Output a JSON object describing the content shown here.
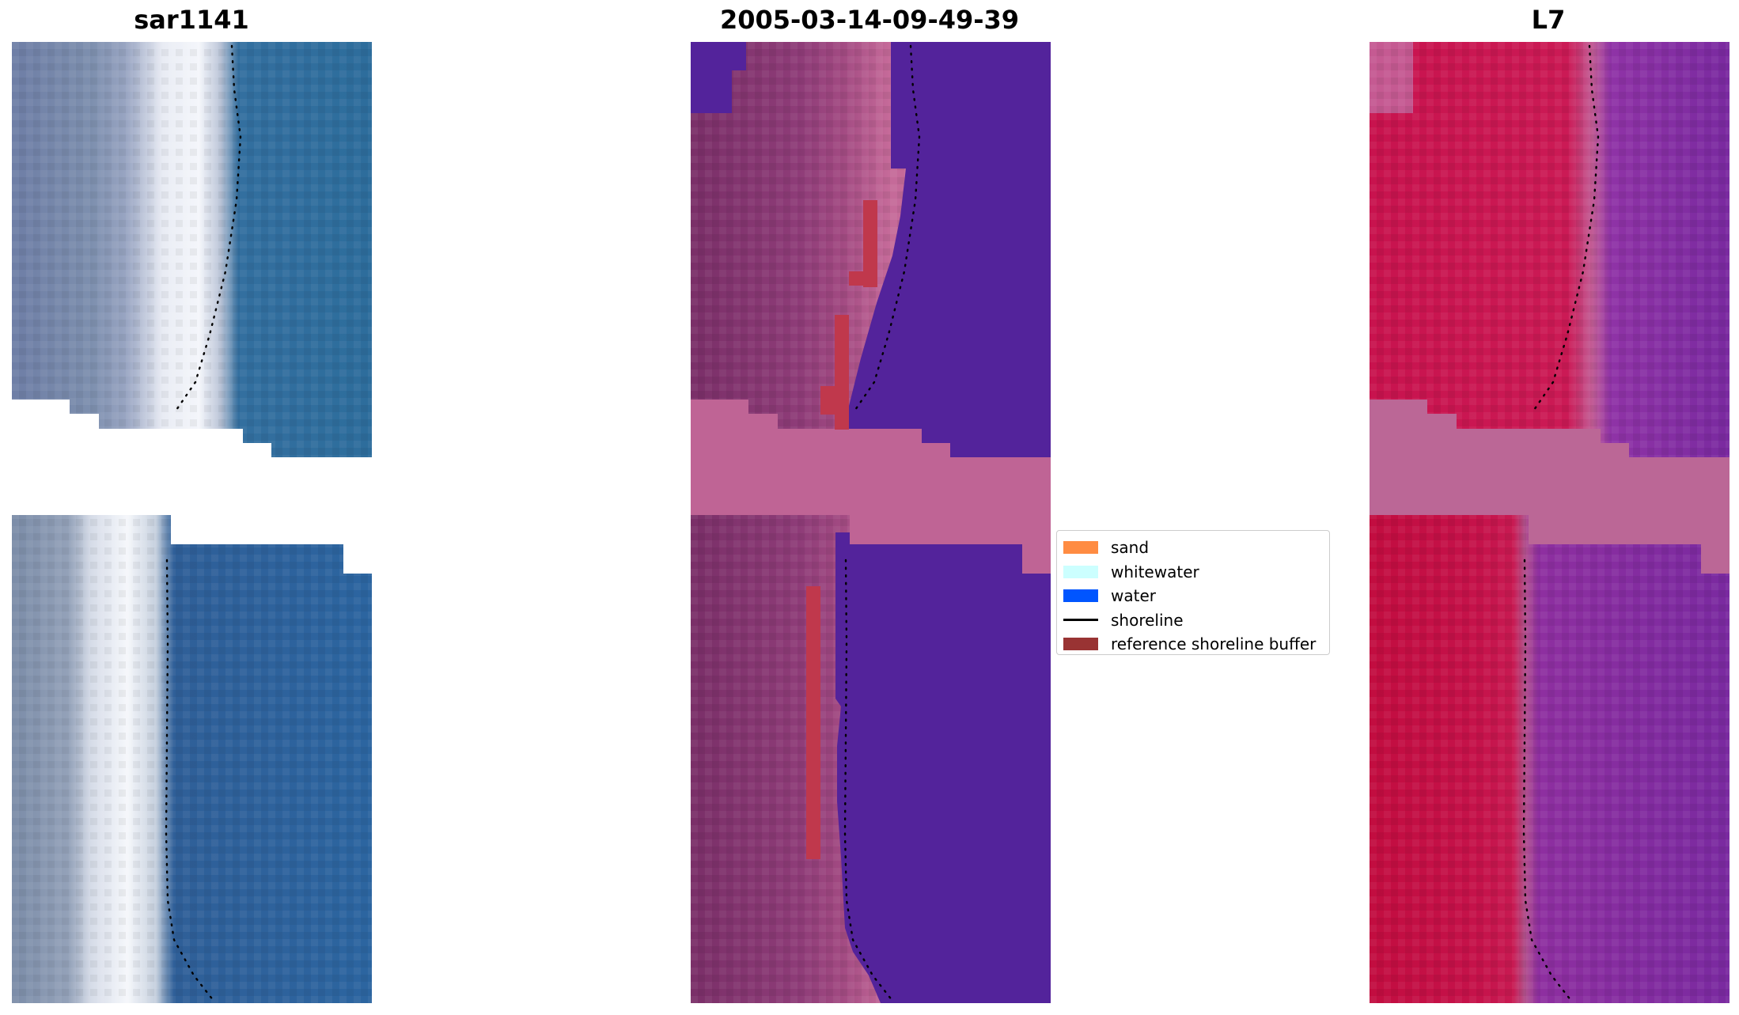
{
  "titles": {
    "left": "sar1141",
    "center": "2005-03-14-09-49-39",
    "right": "L7"
  },
  "legend": {
    "items": [
      {
        "label": "sand",
        "color": "#ff8c42",
        "kind": "patch"
      },
      {
        "label": "whitewater",
        "color": "#ccffff",
        "kind": "patch"
      },
      {
        "label": "water",
        "color": "#0055ff",
        "kind": "patch"
      },
      {
        "label": "shoreline",
        "color": "#000000",
        "kind": "line"
      },
      {
        "label": "reference shoreline buffer",
        "color": "#993333",
        "kind": "patch"
      }
    ]
  },
  "colors": {
    "background": "#ffffff",
    "rgb_water": "#2b6c9e",
    "rgb_surf": "#eef0f5",
    "rgb_land": "#7d8fae",
    "class_water": "#53239b",
    "class_land": "#8a3a73",
    "class_swash": "#bf6495",
    "class_buffer": "#c0384c",
    "mndwi_land": "#c20d40",
    "mndwi_water": "#7a2aa0",
    "mndwi_nodata": "#bb6796",
    "shoreline_points": "#000000"
  }
}
